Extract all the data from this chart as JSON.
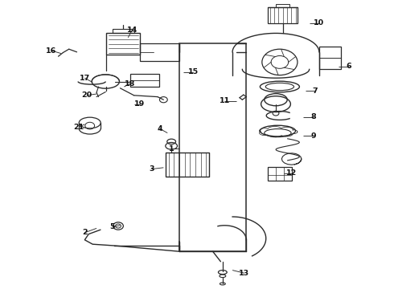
{
  "bg_color": "#ffffff",
  "line_color": "#2a2a2a",
  "text_color": "#111111",
  "fig_w": 4.9,
  "fig_h": 3.6,
  "dpi": 100,
  "label_data": [
    [
      1,
      0.435,
      0.485,
      0.455,
      0.485
    ],
    [
      2,
      0.215,
      0.195,
      0.245,
      0.21
    ],
    [
      3,
      0.385,
      0.415,
      0.415,
      0.42
    ],
    [
      4,
      0.405,
      0.555,
      0.425,
      0.54
    ],
    [
      5,
      0.285,
      0.215,
      0.305,
      0.22
    ],
    [
      6,
      0.885,
      0.77,
      0.86,
      0.77
    ],
    [
      7,
      0.8,
      0.685,
      0.775,
      0.685
    ],
    [
      8,
      0.795,
      0.595,
      0.77,
      0.595
    ],
    [
      9,
      0.795,
      0.53,
      0.77,
      0.53
    ],
    [
      10,
      0.81,
      0.92,
      0.785,
      0.92
    ],
    [
      11,
      0.57,
      0.65,
      0.6,
      0.65
    ],
    [
      12,
      0.74,
      0.4,
      0.72,
      0.4
    ],
    [
      13,
      0.62,
      0.055,
      0.59,
      0.065
    ],
    [
      14,
      0.335,
      0.895,
      0.325,
      0.87
    ],
    [
      15,
      0.49,
      0.75,
      0.465,
      0.75
    ],
    [
      16,
      0.13,
      0.825,
      0.155,
      0.815
    ],
    [
      17,
      0.215,
      0.73,
      0.235,
      0.715
    ],
    [
      18,
      0.33,
      0.71,
      0.315,
      0.7
    ],
    [
      19,
      0.355,
      0.64,
      0.34,
      0.64
    ],
    [
      20,
      0.22,
      0.67,
      0.245,
      0.675
    ],
    [
      21,
      0.2,
      0.56,
      0.215,
      0.57
    ]
  ]
}
